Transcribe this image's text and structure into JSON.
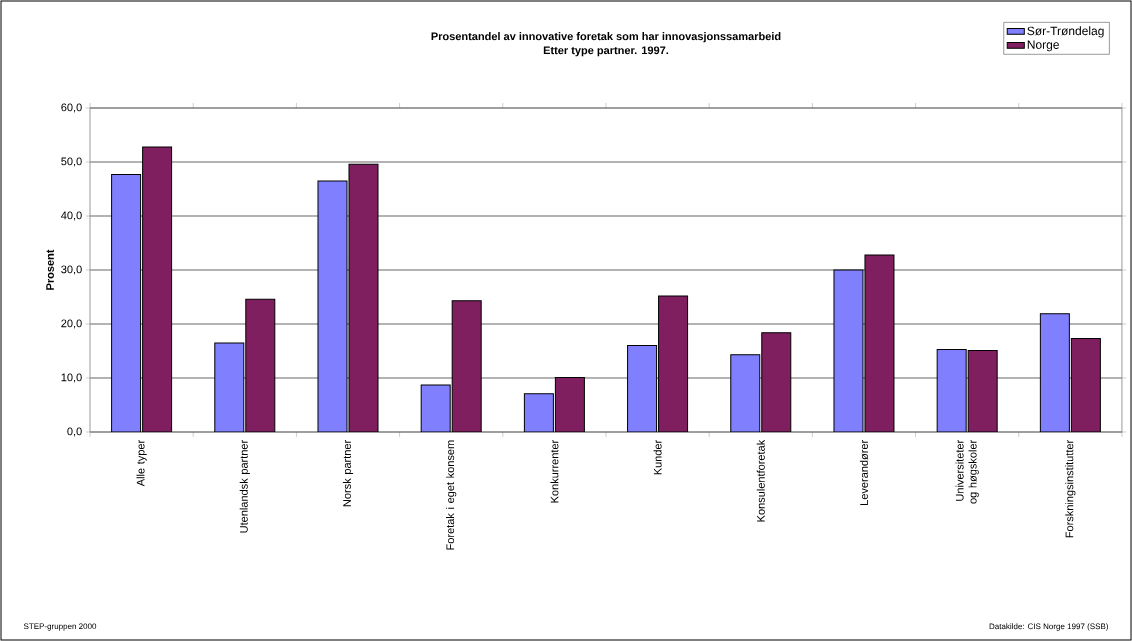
{
  "chart_data": {
    "type": "bar",
    "title": "Prosentandel av innovative foretak som har innovasjonssamarbeid",
    "subtitle": "Etter type partner. 1997.",
    "ylabel": "Prosent",
    "categories": [
      "Alle typer",
      "Utenlandsk partner",
      "Norsk partner",
      "Foretak i eget konsem",
      "Konkurrenter",
      "Kunder",
      "Konsulentforetak",
      "Leverandører",
      "Universiteter og høgskoler",
      "Forskningsinstitutter"
    ],
    "series": [
      {
        "name": "Sør-Trøndelag",
        "color": "#8080ff",
        "values": [
          47.7,
          16.5,
          46.5,
          8.7,
          7.1,
          16.0,
          14.3,
          30.0,
          15.3,
          21.9
        ]
      },
      {
        "name": "Norge",
        "color": "#7f1f5f",
        "values": [
          52.8,
          24.6,
          49.6,
          24.3,
          10.1,
          25.2,
          18.4,
          32.8,
          15.1,
          17.3
        ]
      }
    ],
    "ylim": [
      0,
      60
    ],
    "yticks": [
      {
        "value": 0,
        "label": "0,0"
      },
      {
        "value": 10,
        "label": "10,0"
      },
      {
        "value": 20,
        "label": "20,0"
      },
      {
        "value": 30,
        "label": "30,0"
      },
      {
        "value": 40,
        "label": "40,0"
      },
      {
        "value": 50,
        "label": "50,0"
      },
      {
        "value": 60,
        "label": "60,0"
      }
    ],
    "grid": "y",
    "legend": "top right",
    "annotations": [
      "STEP-gruppen 2000",
      "Datakilde: CIS Norge 1997 (SSB)"
    ]
  }
}
